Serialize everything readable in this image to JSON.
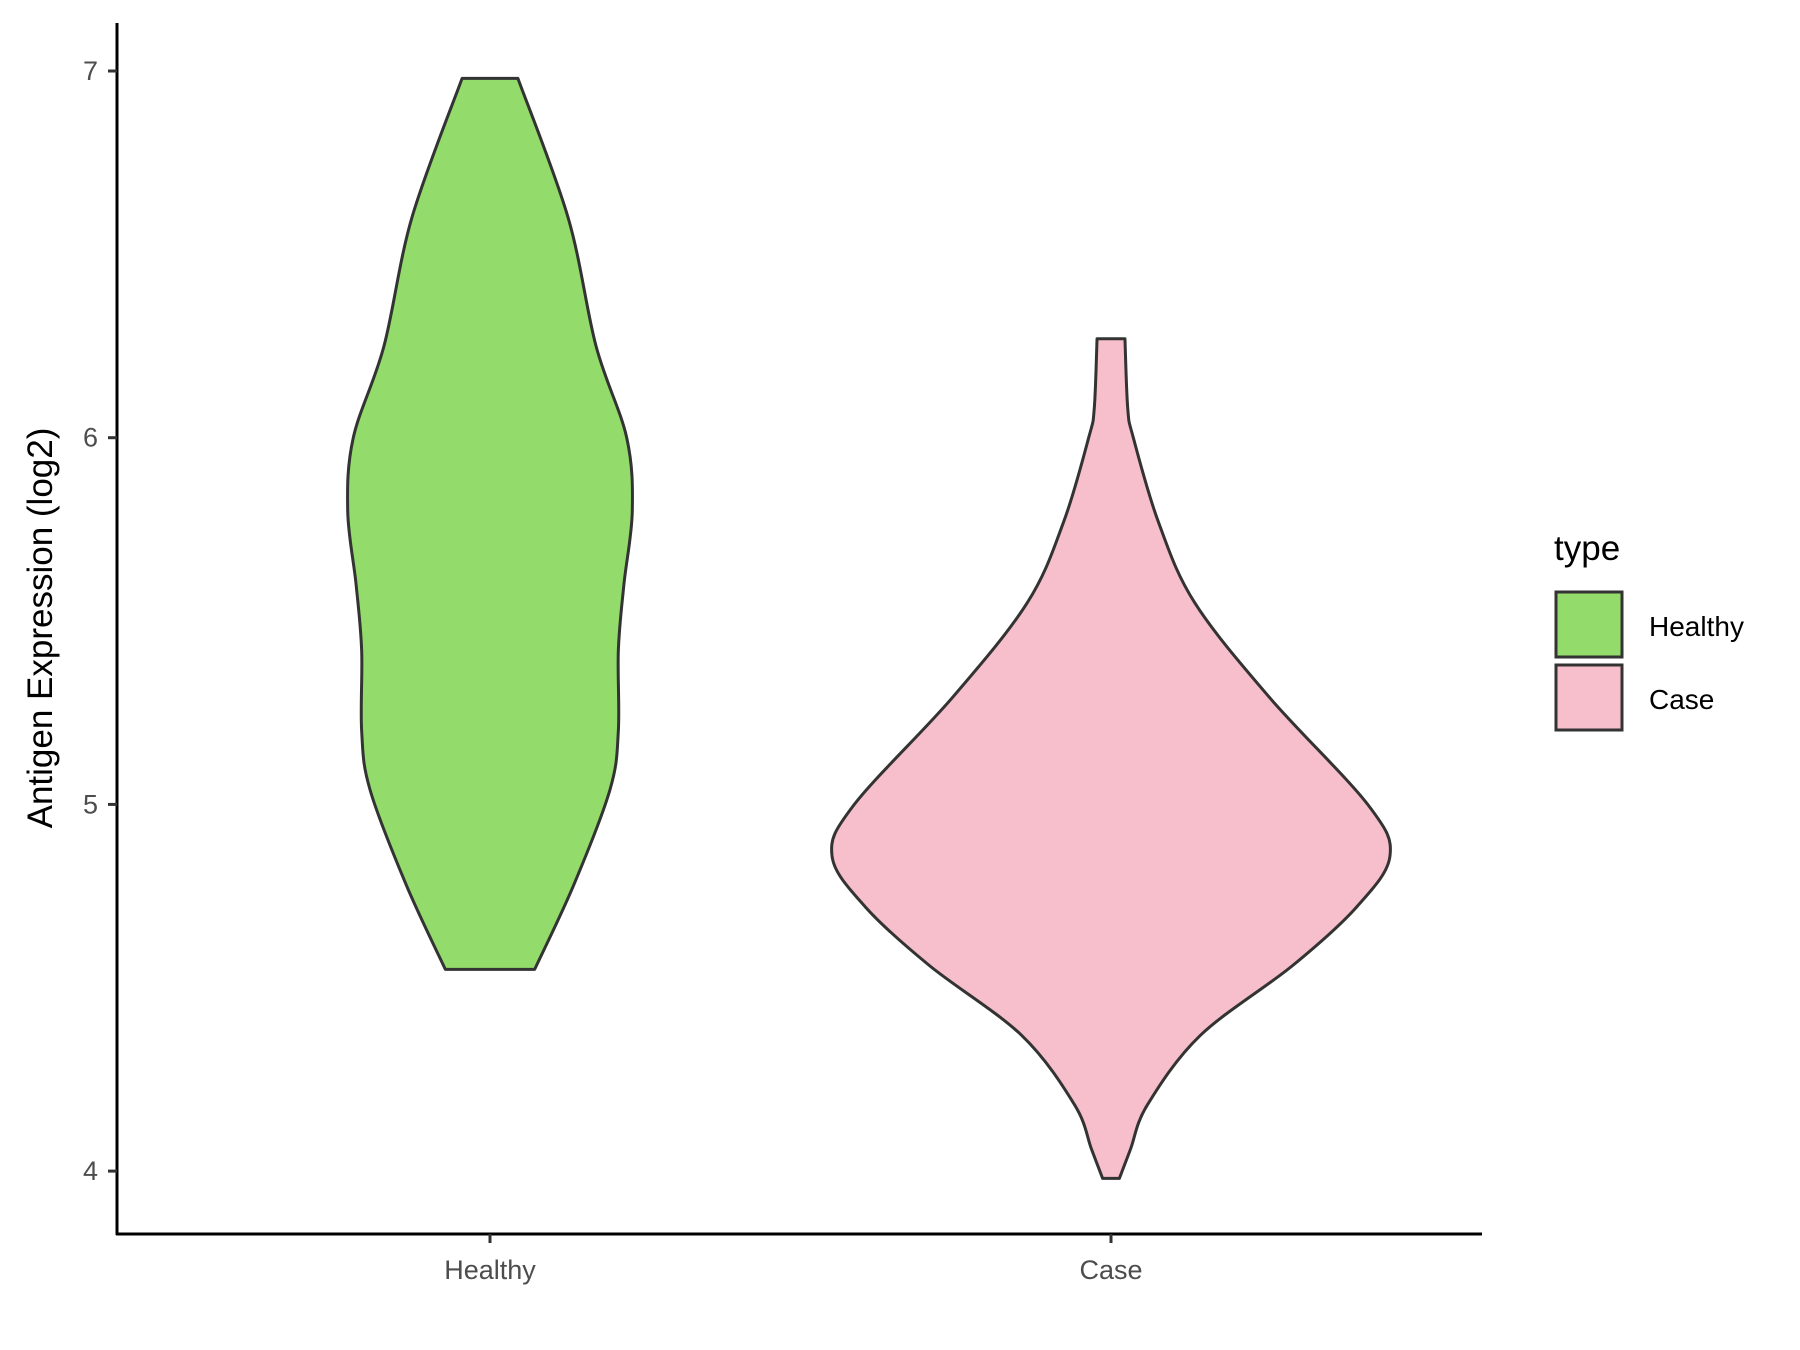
{
  "chart_data": {
    "type": "violin",
    "title": "",
    "xlabel": "",
    "ylabel": "Antigen Expression (log2)",
    "ylim": [
      3.83,
      7.13
    ],
    "yticks": [
      "4",
      "5",
      "6",
      "7"
    ],
    "categories": [
      "Healthy",
      "Case"
    ],
    "grid": false,
    "legend": {
      "title": "type",
      "position": "right",
      "entries": [
        "Healthy",
        "Case"
      ]
    },
    "series": [
      {
        "name": "Healthy",
        "color": "#93DC6B",
        "range": [
          4.55,
          6.98
        ],
        "density_profile": [
          [
            4.55,
            0.16
          ],
          [
            4.78,
            0.3
          ],
          [
            5.04,
            0.43
          ],
          [
            5.2,
            0.46
          ],
          [
            5.42,
            0.46
          ],
          [
            5.6,
            0.48
          ],
          [
            5.8,
            0.51
          ],
          [
            6.0,
            0.49
          ],
          [
            6.25,
            0.38
          ],
          [
            6.6,
            0.28
          ],
          [
            6.98,
            0.1
          ]
        ]
      },
      {
        "name": "Case",
        "color": "#F7BFCB",
        "range": [
          3.98,
          6.27
        ],
        "density_profile": [
          [
            3.98,
            0.03
          ],
          [
            4.06,
            0.07
          ],
          [
            4.18,
            0.13
          ],
          [
            4.37,
            0.32
          ],
          [
            4.56,
            0.65
          ],
          [
            4.72,
            0.88
          ],
          [
            4.86,
            1.0
          ],
          [
            5.0,
            0.92
          ],
          [
            5.29,
            0.57
          ],
          [
            5.55,
            0.3
          ],
          [
            5.77,
            0.17
          ],
          [
            6.0,
            0.08
          ],
          [
            6.08,
            0.06
          ],
          [
            6.27,
            0.05
          ]
        ]
      }
    ]
  }
}
